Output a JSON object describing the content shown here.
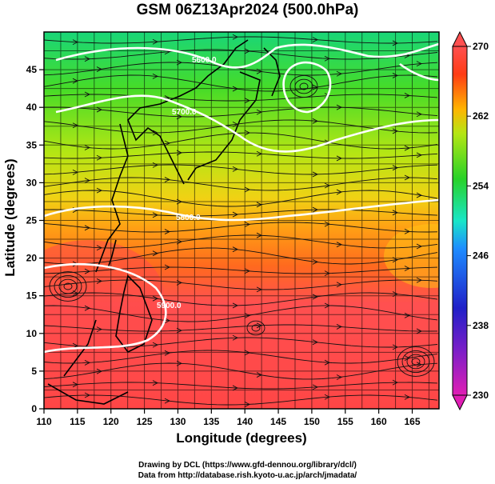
{
  "title": "GSM 06Z13Apr2024 (500.0hPa)",
  "chart_data": {
    "type": "heatmap",
    "variable": "temperature",
    "level": "500.0hPa",
    "xlabel": "Longitude (degrees)",
    "ylabel": "Latitude  (degrees)",
    "xlim": [
      110,
      169
    ],
    "ylim": [
      0,
      50
    ],
    "xticks": [
      "110",
      "115",
      "120",
      "125",
      "130",
      "135",
      "140",
      "145",
      "150",
      "155",
      "160",
      "165"
    ],
    "yticks": [
      "0",
      "5",
      "10",
      "15",
      "20",
      "25",
      "30",
      "35",
      "40",
      "45"
    ],
    "colorbar": {
      "min": 230,
      "max": 270,
      "ticks": [
        "270",
        "262",
        "254",
        "246",
        "238",
        "230"
      ],
      "colors": [
        "#e01eb4",
        "#2020c8",
        "#1e8cff",
        "#19e6c8",
        "#28d228",
        "#e6e61e",
        "#ff9600",
        "#ff3c14",
        "#ff5050"
      ]
    },
    "contour_labels": [
      "5600.0",
      "5700.0",
      "5800.0",
      "5900.0"
    ],
    "grid": true
  },
  "credits": {
    "line1": "Drawing by DCL (https://www.gfd-dennou.org/library/dcl/)",
    "line2": "Data from http://database.rish.kyoto-u.ac.jp/arch/jmadata/"
  }
}
